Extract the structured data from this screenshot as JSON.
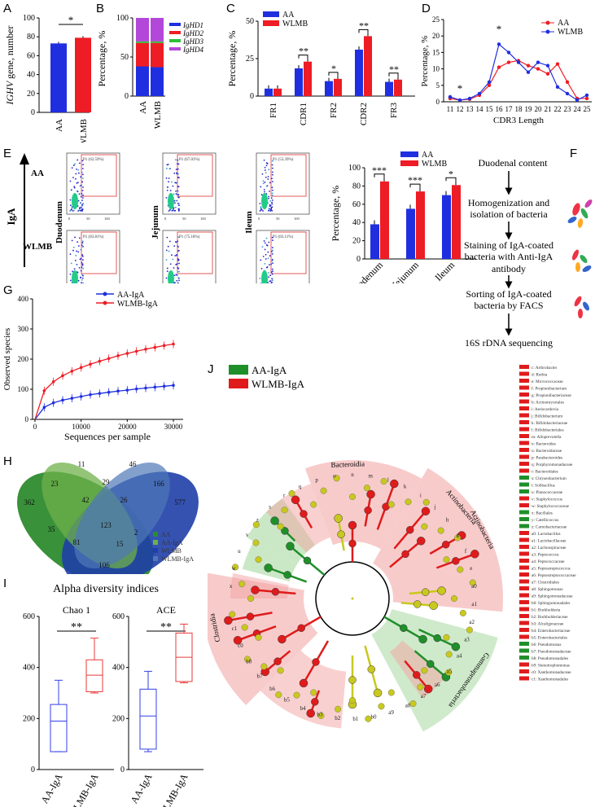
{
  "colors": {
    "blue": "#1f2fe0",
    "red": "#ee1c24",
    "green": "#1a8a2a",
    "lightgreen": "#2fbf3a",
    "purple": "#b347d9",
    "yellow": "#c7c71a"
  },
  "panel_labels": [
    "A",
    "B",
    "C",
    "D",
    "E",
    "F",
    "G",
    "H",
    "I",
    "J"
  ],
  "chart_data": [
    {
      "id": "A",
      "type": "bar",
      "categories": [
        "AA",
        "WLMB"
      ],
      "values": [
        73,
        79
      ],
      "ylim": [
        0,
        100
      ],
      "yticks": [
        0,
        20,
        40,
        60,
        80,
        100
      ],
      "ylabel": "IGHV gene, number",
      "ylabel_italic": "IGHV",
      "ylabel_rest": " gene, number",
      "significance": "*"
    },
    {
      "id": "B",
      "type": "bar",
      "stacked": true,
      "categories": [
        "AA",
        "WLMB"
      ],
      "ylim": [
        0,
        100
      ],
      "yticks": [
        0,
        50,
        100
      ],
      "ylabel": "Percentage, %",
      "series": [
        {
          "name": "IgHD1",
          "values": [
            38,
            37
          ]
        },
        {
          "name": "IgHD2",
          "values": [
            30,
            31
          ]
        },
        {
          "name": "IgHD3",
          "values": [
            2,
            2
          ]
        },
        {
          "name": "IgHD4",
          "values": [
            30,
            30
          ]
        }
      ]
    },
    {
      "id": "C",
      "type": "bar",
      "categories": [
        "FR1",
        "CDR1",
        "FR2",
        "CDR2",
        "FR3"
      ],
      "ylim": [
        0,
        50
      ],
      "yticks": [
        0,
        25,
        50
      ],
      "ylabel": "Percentage, %",
      "series": [
        {
          "name": "AA",
          "values": [
            5,
            18.5,
            10,
            31,
            9.5
          ]
        },
        {
          "name": "WLMB",
          "values": [
            5,
            23,
            11.5,
            40,
            11
          ]
        }
      ],
      "significance": [
        "",
        "**",
        "*",
        "**",
        "**"
      ]
    },
    {
      "id": "D",
      "type": "line",
      "x": [
        11,
        12,
        13,
        14,
        15,
        16,
        17,
        18,
        19,
        20,
        21,
        22,
        23,
        24,
        25
      ],
      "xlabel": "CDR3 Length",
      "ylabel": "Percentage, %",
      "ylim": [
        0,
        25
      ],
      "yticks": [
        0,
        5,
        10,
        15,
        20,
        25
      ],
      "series": [
        {
          "name": "AA",
          "values": [
            1,
            0.5,
            0.8,
            2,
            5,
            10.5,
            12,
            12.5,
            11,
            10,
            8.5,
            11.5,
            6,
            1,
            1
          ]
        },
        {
          "name": "WLMB",
          "values": [
            1.5,
            0.5,
            1,
            2.5,
            6,
            17.5,
            15,
            12,
            9,
            12,
            11,
            4.5,
            2.5,
            0.5,
            2
          ]
        }
      ],
      "annotations": [
        {
          "x": 12,
          "text": "*"
        },
        {
          "x": 16,
          "text": "*"
        }
      ]
    },
    {
      "id": "E",
      "type": "bar",
      "categories": [
        "Duodenum",
        "Jejunum",
        "Ileum"
      ],
      "ylim": [
        0,
        100
      ],
      "yticks": [
        0,
        20,
        40,
        60,
        80,
        100
      ],
      "ylabel": "Percentage, %",
      "series": [
        {
          "name": "AA",
          "values": [
            38,
            55,
            70
          ]
        },
        {
          "name": "WLMB",
          "values": [
            85,
            74,
            81
          ]
        }
      ],
      "significance": [
        "***",
        "***",
        "*"
      ]
    },
    {
      "id": "G",
      "type": "line",
      "xlabel": "Sequences per sample",
      "ylabel": "Observed species",
      "ylim": [
        0,
        400
      ],
      "yticks": [
        0,
        100,
        200,
        300,
        400
      ],
      "xlim": [
        0,
        30000
      ],
      "xticks": [
        0,
        10000,
        20000,
        30000
      ],
      "x": [
        0,
        2000,
        4000,
        6000,
        8000,
        10000,
        12000,
        14000,
        16000,
        18000,
        20000,
        22000,
        24000,
        26000,
        28000,
        30000
      ],
      "series": [
        {
          "name": "AA-IgA",
          "values": [
            0,
            40,
            55,
            64,
            70,
            76,
            82,
            86,
            90,
            94,
            97,
            101,
            104,
            107,
            110,
            113
          ]
        },
        {
          "name": "WLMB-IgA",
          "values": [
            0,
            95,
            125,
            145,
            160,
            172,
            183,
            193,
            202,
            211,
            219,
            226,
            233,
            239,
            245,
            250
          ]
        }
      ]
    },
    {
      "id": "I",
      "type": "box",
      "title": "Alpha diversity indices",
      "ylim": [
        0,
        600
      ],
      "yticks": [
        0,
        200,
        400,
        600
      ],
      "subplots": [
        {
          "name": "Chao 1",
          "significance": "**",
          "groups": [
            {
              "name": "AA-IgA",
              "min": 70,
              "q1": 70,
              "median": 190,
              "q3": 255,
              "max": 350
            },
            {
              "name": "WLMB-IgA",
              "min": 300,
              "q1": 305,
              "median": 370,
              "q3": 430,
              "max": 515
            }
          ]
        },
        {
          "name": "ACE",
          "significance": "**",
          "groups": [
            {
              "name": "AA-IgA",
              "min": 70,
              "q1": 80,
              "median": 210,
              "q3": 315,
              "max": 385
            },
            {
              "name": "WLMB-IgA",
              "min": 340,
              "q1": 345,
              "median": 440,
              "q3": 535,
              "max": 570
            }
          ]
        }
      ]
    }
  ],
  "e_panel": {
    "aa": "AA",
    "wlmb": "WLMB",
    "iga": "IgA",
    "tissues": [
      "Duodenum",
      "Jejunum",
      "Ileum"
    ],
    "gates": [
      "P1 (62.59%)",
      "P1 (67.03%)",
      "P1 (53.39%)",
      "P1 (83.81%)",
      "P1 (75.18%)",
      "P1 (83.11%)"
    ],
    "axis_ticks": [
      "0",
      "50",
      "100"
    ]
  },
  "flowchart": {
    "steps": [
      "Duodenal content",
      "Homogenization and isolation of bacteria",
      "Staining of IgA-coated bacteria with Anti-IgA antibody",
      "Sorting of IgA-coated bacteria by FACS",
      "16S rDNA sequencing"
    ]
  },
  "venn": {
    "legend": [
      "AA",
      "AA-IgA",
      "WLMB",
      "WLMB-IgA"
    ],
    "numbers": [
      "11",
      "46",
      "23",
      "29",
      "166",
      "362",
      "42",
      "26",
      "577",
      "123",
      "35",
      "81",
      "2",
      "15",
      "106"
    ]
  },
  "cladogram": {
    "legend": [
      "AA-IgA",
      "WLMB-IgA"
    ],
    "clade_labels": [
      "Bacteroidia",
      "Actinobacteria",
      "Actinobacteria",
      "Clostridia",
      "Gammaproteobacteria"
    ],
    "node_letters": [
      "x",
      "w",
      "u",
      "v",
      "z",
      "s",
      "r",
      "q",
      "p",
      "o",
      "n",
      "m",
      "l",
      "k",
      "i",
      "j",
      "h",
      "g",
      "f",
      "e",
      "a0",
      "a1",
      "a2",
      "a3",
      "a4",
      "a5",
      "a6",
      "a7",
      "a8",
      "a9",
      "b0",
      "b1",
      "b2",
      "b3",
      "b4",
      "b5",
      "b6",
      "b7",
      "b8",
      "c0",
      "c1"
    ],
    "key": [
      {
        "c": "r",
        "t": "a: Actinomyces"
      },
      {
        "c": "r",
        "t": "b: Actinomycetaceae"
      },
      {
        "c": "r",
        "t": "c: Arthrobacter"
      },
      {
        "c": "r",
        "t": "d: Rothia"
      },
      {
        "c": "r",
        "t": "e: Micrococcaceae"
      },
      {
        "c": "r",
        "t": "f: Propionibacterium"
      },
      {
        "c": "r",
        "t": "g: Propionibacteriaceae"
      },
      {
        "c": "r",
        "t": "h: Actinomycetales"
      },
      {
        "c": "r",
        "t": "i: Aeriscardovia"
      },
      {
        "c": "r",
        "t": "j: Bifidobacterium"
      },
      {
        "c": "r",
        "t": "k: Bifidobacteriaceae"
      },
      {
        "c": "r",
        "t": "l: Bifidobacteriales"
      },
      {
        "c": "r",
        "t": "m: Alloprevotella"
      },
      {
        "c": "r",
        "t": "n: Bacteroides"
      },
      {
        "c": "r",
        "t": "o: Bacteroidaceae"
      },
      {
        "c": "r",
        "t": "p: Parabacteroides"
      },
      {
        "c": "r",
        "t": "q: Porphyromonadaceae"
      },
      {
        "c": "r",
        "t": "r: Bacteroidales"
      },
      {
        "c": "g",
        "t": "s: Chryseobacterium"
      },
      {
        "c": "g",
        "t": "t: Solibacillus"
      },
      {
        "c": "g",
        "t": "u: Planococcaceae"
      },
      {
        "c": "r",
        "t": "v: Staphylococcus"
      },
      {
        "c": "r",
        "t": "w: Staphylococcaceae"
      },
      {
        "c": "g",
        "t": "x: Bacillales"
      },
      {
        "c": "g",
        "t": "y: Catellicoccus"
      },
      {
        "c": "g",
        "t": "z: Carnobacteriaceae"
      },
      {
        "c": "r",
        "t": "a0: Lactobacillus"
      },
      {
        "c": "r",
        "t": "a1: Lactobacillaceae"
      },
      {
        "c": "r",
        "t": "a2: Lachnospiraceae"
      },
      {
        "c": "r",
        "t": "a3: Peptococcus"
      },
      {
        "c": "r",
        "t": "a4: Peptococcaceae"
      },
      {
        "c": "r",
        "t": "a5: Peptostreptococcus"
      },
      {
        "c": "r",
        "t": "a6: Peptostreptococcaceae"
      },
      {
        "c": "r",
        "t": "a7: Clostridiales"
      },
      {
        "c": "r",
        "t": "a8: Sphingomonas"
      },
      {
        "c": "r",
        "t": "a9: Sphingomonadaceae"
      },
      {
        "c": "r",
        "t": "b0: Sphingomonadales"
      },
      {
        "c": "r",
        "t": "b1: Burkholderia"
      },
      {
        "c": "r",
        "t": "b2: Burkholderiaceae"
      },
      {
        "c": "r",
        "t": "b3: Alcaligenaceae"
      },
      {
        "c": "r",
        "t": "b4: Enterobacteriaceae"
      },
      {
        "c": "r",
        "t": "b5: Enterobacteriales"
      },
      {
        "c": "g",
        "t": "b6: Pseudomonas"
      },
      {
        "c": "g",
        "t": "b7: Pseudomonadaceae"
      },
      {
        "c": "g",
        "t": "b8: Pseudomonadales"
      },
      {
        "c": "r",
        "t": "b9: Stenotrophomonas"
      },
      {
        "c": "r",
        "t": "c0: Xanthomonadaceae"
      },
      {
        "c": "r",
        "t": "c1: Xanthomonadales"
      }
    ]
  }
}
